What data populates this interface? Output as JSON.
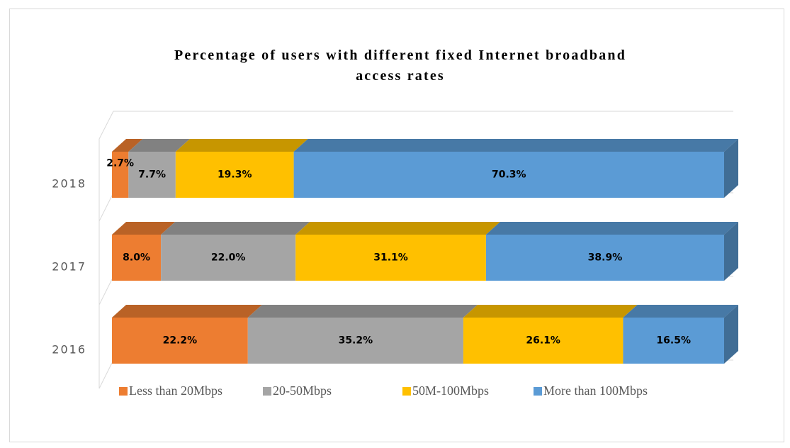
{
  "chart_data": {
    "type": "bar3d_stacked_horizontal",
    "title": "Percentage of users with different fixed Internet broadband access rates",
    "categories": [
      "2018",
      "2017",
      "2016"
    ],
    "series": [
      {
        "name": "Less than 20Mbps",
        "color": "#ed7d31",
        "values": [
          2.7,
          8.0,
          22.2
        ],
        "value_labels": [
          "2.7%",
          "8.0%",
          "22.2%"
        ]
      },
      {
        "name": "20-50Mbps",
        "color": "#a5a5a5",
        "values": [
          7.7,
          22.0,
          35.2
        ],
        "value_labels": [
          "7.7%",
          "22.0%",
          "35.2%"
        ]
      },
      {
        "name": "50M-100Mbps",
        "color": "#ffc000",
        "values": [
          19.3,
          31.1,
          26.1
        ],
        "value_labels": [
          "19.3%",
          "31.1%",
          "26.1%"
        ]
      },
      {
        "name": "More than 100Mbps",
        "color": "#5b9bd5",
        "values": [
          70.3,
          38.9,
          16.5
        ],
        "value_labels": [
          "70.3%",
          "38.9%",
          "16.5%"
        ]
      }
    ],
    "legend": "bottom"
  }
}
